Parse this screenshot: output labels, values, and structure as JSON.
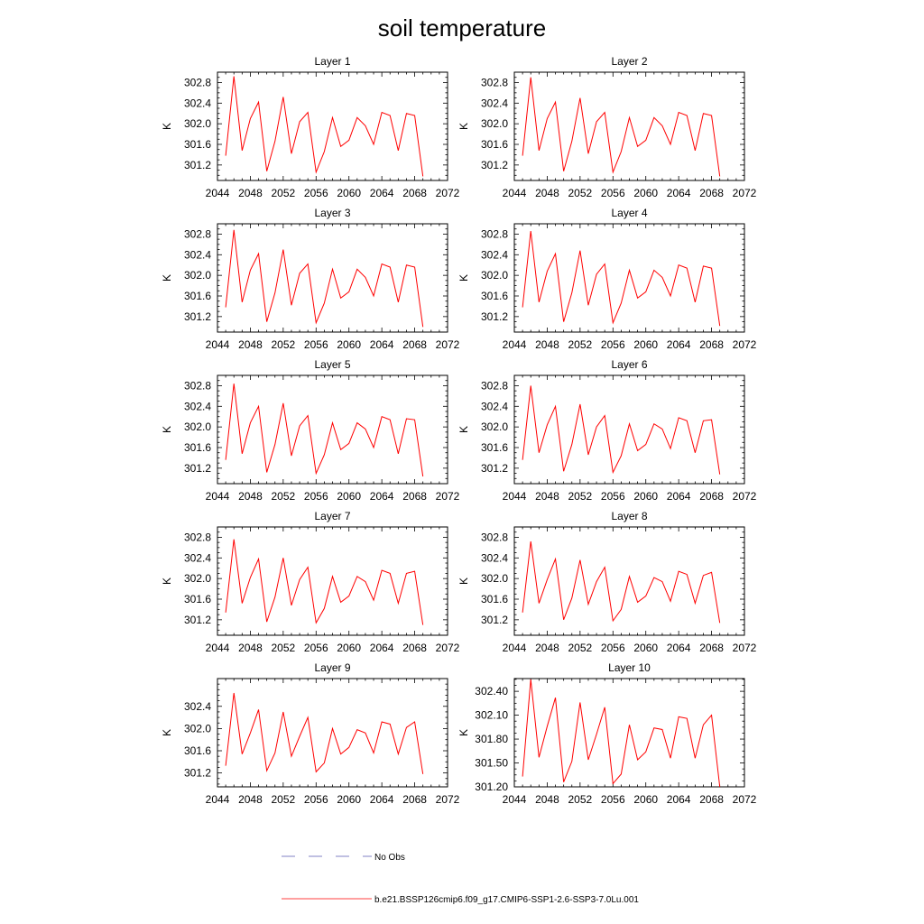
{
  "figure": {
    "title": "soil temperature"
  },
  "legend": {
    "obs": {
      "label": "No Obs",
      "color": "#5a5ab4",
      "dash": true
    },
    "model": {
      "label": "b.e21.BSSP126cmip6.f09_g17.CMIP6-SSP1-2.6-SSP3-7.0Lu.001",
      "color": "#ff0000"
    }
  },
  "chart_data": [
    {
      "type": "line",
      "title": "Layer 1",
      "ylabel": "K",
      "xlim": [
        2044,
        2072
      ],
      "xticks": [
        2044,
        2048,
        2052,
        2056,
        2060,
        2064,
        2068,
        2072
      ],
      "ylim": [
        300.9,
        303.0
      ],
      "yticks": [
        301.2,
        301.6,
        302.0,
        302.4,
        302.8
      ],
      "ytick_decimals": 1,
      "series": [
        {
          "color": "#ff0000",
          "x": [
            2045,
            2046,
            2047,
            2048,
            2049,
            2050,
            2051,
            2052,
            2053,
            2054,
            2055,
            2056,
            2057,
            2058,
            2059,
            2060,
            2061,
            2062,
            2063,
            2064,
            2065,
            2066,
            2067,
            2068,
            2069
          ],
          "y": [
            301.38,
            302.92,
            301.48,
            302.1,
            302.42,
            301.08,
            301.66,
            302.52,
            301.42,
            302.04,
            302.22,
            301.06,
            301.46,
            302.12,
            301.56,
            301.68,
            302.12,
            301.96,
            301.6,
            302.22,
            302.16,
            301.48,
            302.2,
            302.16,
            300.98
          ]
        }
      ]
    },
    {
      "type": "line",
      "title": "Layer 2",
      "ylabel": "K",
      "xlim": [
        2044,
        2072
      ],
      "xticks": [
        2044,
        2048,
        2052,
        2056,
        2060,
        2064,
        2068,
        2072
      ],
      "ylim": [
        300.9,
        303.0
      ],
      "yticks": [
        301.2,
        301.6,
        302.0,
        302.4,
        302.8
      ],
      "ytick_decimals": 1,
      "series": [
        {
          "color": "#ff0000",
          "x": [
            2045,
            2046,
            2047,
            2048,
            2049,
            2050,
            2051,
            2052,
            2053,
            2054,
            2055,
            2056,
            2057,
            2058,
            2059,
            2060,
            2061,
            2062,
            2063,
            2064,
            2065,
            2066,
            2067,
            2068,
            2069
          ],
          "y": [
            301.38,
            302.9,
            301.48,
            302.1,
            302.42,
            301.08,
            301.66,
            302.5,
            301.42,
            302.04,
            302.22,
            301.06,
            301.46,
            302.12,
            301.56,
            301.68,
            302.12,
            301.96,
            301.6,
            302.22,
            302.16,
            301.48,
            302.2,
            302.16,
            300.98
          ]
        }
      ]
    },
    {
      "type": "line",
      "title": "Layer 3",
      "ylabel": "K",
      "xlim": [
        2044,
        2072
      ],
      "xticks": [
        2044,
        2048,
        2052,
        2056,
        2060,
        2064,
        2068,
        2072
      ],
      "ylim": [
        300.9,
        303.0
      ],
      "yticks": [
        301.2,
        301.6,
        302.0,
        302.4,
        302.8
      ],
      "ytick_decimals": 1,
      "series": [
        {
          "color": "#ff0000",
          "x": [
            2045,
            2046,
            2047,
            2048,
            2049,
            2050,
            2051,
            2052,
            2053,
            2054,
            2055,
            2056,
            2057,
            2058,
            2059,
            2060,
            2061,
            2062,
            2063,
            2064,
            2065,
            2066,
            2067,
            2068,
            2069
          ],
          "y": [
            301.38,
            302.88,
            301.48,
            302.1,
            302.42,
            301.1,
            301.66,
            302.5,
            301.42,
            302.04,
            302.22,
            301.08,
            301.46,
            302.12,
            301.56,
            301.68,
            302.12,
            301.96,
            301.6,
            302.22,
            302.16,
            301.48,
            302.2,
            302.16,
            301.0
          ]
        }
      ]
    },
    {
      "type": "line",
      "title": "Layer 4",
      "ylabel": "K",
      "xlim": [
        2044,
        2072
      ],
      "xticks": [
        2044,
        2048,
        2052,
        2056,
        2060,
        2064,
        2068,
        2072
      ],
      "ylim": [
        300.9,
        303.0
      ],
      "yticks": [
        301.2,
        301.6,
        302.0,
        302.4,
        302.8
      ],
      "ytick_decimals": 1,
      "series": [
        {
          "color": "#ff0000",
          "x": [
            2045,
            2046,
            2047,
            2048,
            2049,
            2050,
            2051,
            2052,
            2053,
            2054,
            2055,
            2056,
            2057,
            2058,
            2059,
            2060,
            2061,
            2062,
            2063,
            2064,
            2065,
            2066,
            2067,
            2068,
            2069
          ],
          "y": [
            301.38,
            302.86,
            301.48,
            302.08,
            302.42,
            301.1,
            301.66,
            302.48,
            301.42,
            302.02,
            302.22,
            301.08,
            301.46,
            302.1,
            301.56,
            301.68,
            302.1,
            301.96,
            301.6,
            302.2,
            302.14,
            301.48,
            302.18,
            302.14,
            301.02
          ]
        }
      ]
    },
    {
      "type": "line",
      "title": "Layer 5",
      "ylabel": "K",
      "xlim": [
        2044,
        2072
      ],
      "xticks": [
        2044,
        2048,
        2052,
        2056,
        2060,
        2064,
        2068,
        2072
      ],
      "ylim": [
        300.9,
        303.0
      ],
      "yticks": [
        301.2,
        301.6,
        302.0,
        302.4,
        302.8
      ],
      "ytick_decimals": 1,
      "series": [
        {
          "color": "#ff0000",
          "x": [
            2045,
            2046,
            2047,
            2048,
            2049,
            2050,
            2051,
            2052,
            2053,
            2054,
            2055,
            2056,
            2057,
            2058,
            2059,
            2060,
            2061,
            2062,
            2063,
            2064,
            2065,
            2066,
            2067,
            2068,
            2069
          ],
          "y": [
            301.36,
            302.84,
            301.48,
            302.08,
            302.4,
            301.12,
            301.66,
            302.46,
            301.44,
            302.02,
            302.22,
            301.1,
            301.46,
            302.08,
            301.56,
            301.68,
            302.08,
            301.96,
            301.6,
            302.2,
            302.14,
            301.48,
            302.16,
            302.14,
            301.04
          ]
        }
      ]
    },
    {
      "type": "line",
      "title": "Layer 6",
      "ylabel": "K",
      "xlim": [
        2044,
        2072
      ],
      "xticks": [
        2044,
        2048,
        2052,
        2056,
        2060,
        2064,
        2068,
        2072
      ],
      "ylim": [
        300.9,
        303.0
      ],
      "yticks": [
        301.2,
        301.6,
        302.0,
        302.4,
        302.8
      ],
      "ytick_decimals": 1,
      "series": [
        {
          "color": "#ff0000",
          "x": [
            2045,
            2046,
            2047,
            2048,
            2049,
            2050,
            2051,
            2052,
            2053,
            2054,
            2055,
            2056,
            2057,
            2058,
            2059,
            2060,
            2061,
            2062,
            2063,
            2064,
            2065,
            2066,
            2067,
            2068,
            2069
          ],
          "y": [
            301.36,
            302.8,
            301.5,
            302.04,
            302.4,
            301.14,
            301.66,
            302.44,
            301.46,
            302.0,
            302.22,
            301.12,
            301.44,
            302.06,
            301.54,
            301.66,
            302.06,
            301.96,
            301.58,
            302.18,
            302.12,
            301.5,
            302.12,
            302.14,
            301.08
          ]
        }
      ]
    },
    {
      "type": "line",
      "title": "Layer 7",
      "ylabel": "K",
      "xlim": [
        2044,
        2072
      ],
      "xticks": [
        2044,
        2048,
        2052,
        2056,
        2060,
        2064,
        2068,
        2072
      ],
      "ylim": [
        300.9,
        303.0
      ],
      "yticks": [
        301.2,
        301.6,
        302.0,
        302.4,
        302.8
      ],
      "ytick_decimals": 1,
      "series": [
        {
          "color": "#ff0000",
          "x": [
            2045,
            2046,
            2047,
            2048,
            2049,
            2050,
            2051,
            2052,
            2053,
            2054,
            2055,
            2056,
            2057,
            2058,
            2059,
            2060,
            2061,
            2062,
            2063,
            2064,
            2065,
            2066,
            2067,
            2068,
            2069
          ],
          "y": [
            301.34,
            302.76,
            301.52,
            302.02,
            302.38,
            301.16,
            301.64,
            302.4,
            301.48,
            301.98,
            302.22,
            301.14,
            301.42,
            302.04,
            301.54,
            301.66,
            302.04,
            301.94,
            301.58,
            302.16,
            302.1,
            301.52,
            302.1,
            302.14,
            301.1
          ]
        }
      ]
    },
    {
      "type": "line",
      "title": "Layer 8",
      "ylabel": "K",
      "xlim": [
        2044,
        2072
      ],
      "xticks": [
        2044,
        2048,
        2052,
        2056,
        2060,
        2064,
        2068,
        2072
      ],
      "ylim": [
        300.9,
        303.0
      ],
      "yticks": [
        301.2,
        301.6,
        302.0,
        302.4,
        302.8
      ],
      "ytick_decimals": 1,
      "series": [
        {
          "color": "#ff0000",
          "x": [
            2045,
            2046,
            2047,
            2048,
            2049,
            2050,
            2051,
            2052,
            2053,
            2054,
            2055,
            2056,
            2057,
            2058,
            2059,
            2060,
            2061,
            2062,
            2063,
            2064,
            2065,
            2066,
            2067,
            2068,
            2069
          ],
          "y": [
            301.34,
            302.72,
            301.52,
            301.98,
            302.38,
            301.2,
            301.62,
            302.36,
            301.5,
            301.94,
            302.22,
            301.18,
            301.4,
            302.04,
            301.54,
            301.66,
            302.02,
            301.94,
            301.56,
            302.14,
            302.08,
            301.52,
            302.06,
            302.12,
            301.14
          ]
        }
      ]
    },
    {
      "type": "line",
      "title": "Layer 9",
      "ylabel": "K",
      "xlim": [
        2044,
        2072
      ],
      "xticks": [
        2044,
        2048,
        2052,
        2056,
        2060,
        2064,
        2068,
        2072
      ],
      "ylim": [
        300.95,
        302.9
      ],
      "yticks": [
        301.2,
        301.6,
        302.0,
        302.4
      ],
      "ytick_decimals": 1,
      "series": [
        {
          "color": "#ff0000",
          "x": [
            2045,
            2046,
            2047,
            2048,
            2049,
            2050,
            2051,
            2052,
            2053,
            2054,
            2055,
            2056,
            2057,
            2058,
            2059,
            2060,
            2061,
            2062,
            2063,
            2064,
            2065,
            2066,
            2067,
            2068,
            2069
          ],
          "y": [
            301.33,
            302.64,
            301.54,
            301.92,
            302.34,
            301.24,
            301.56,
            302.3,
            301.5,
            301.86,
            302.2,
            301.22,
            301.38,
            302.0,
            301.54,
            301.66,
            301.98,
            301.92,
            301.56,
            302.12,
            302.08,
            301.54,
            302.02,
            302.12,
            301.18
          ]
        }
      ]
    },
    {
      "type": "line",
      "title": "Layer 10",
      "ylabel": "K",
      "xlim": [
        2044,
        2072
      ],
      "xticks": [
        2044,
        2048,
        2052,
        2056,
        2060,
        2064,
        2068,
        2072
      ],
      "ylim": [
        301.2,
        302.56
      ],
      "yticks": [
        301.2,
        301.5,
        301.8,
        302.1,
        302.4
      ],
      "ytick_decimals": 2,
      "series": [
        {
          "color": "#ff0000",
          "x": [
            2045,
            2046,
            2047,
            2048,
            2049,
            2050,
            2051,
            2052,
            2053,
            2054,
            2055,
            2056,
            2057,
            2058,
            2059,
            2060,
            2061,
            2062,
            2063,
            2064,
            2065,
            2066,
            2067,
            2068,
            2069
          ],
          "y": [
            301.33,
            302.55,
            301.57,
            301.96,
            302.32,
            301.26,
            301.52,
            302.26,
            301.54,
            301.86,
            302.2,
            301.24,
            301.36,
            301.98,
            301.54,
            301.64,
            301.94,
            301.92,
            301.56,
            302.08,
            302.06,
            301.56,
            301.98,
            302.1,
            301.2
          ]
        }
      ]
    }
  ]
}
